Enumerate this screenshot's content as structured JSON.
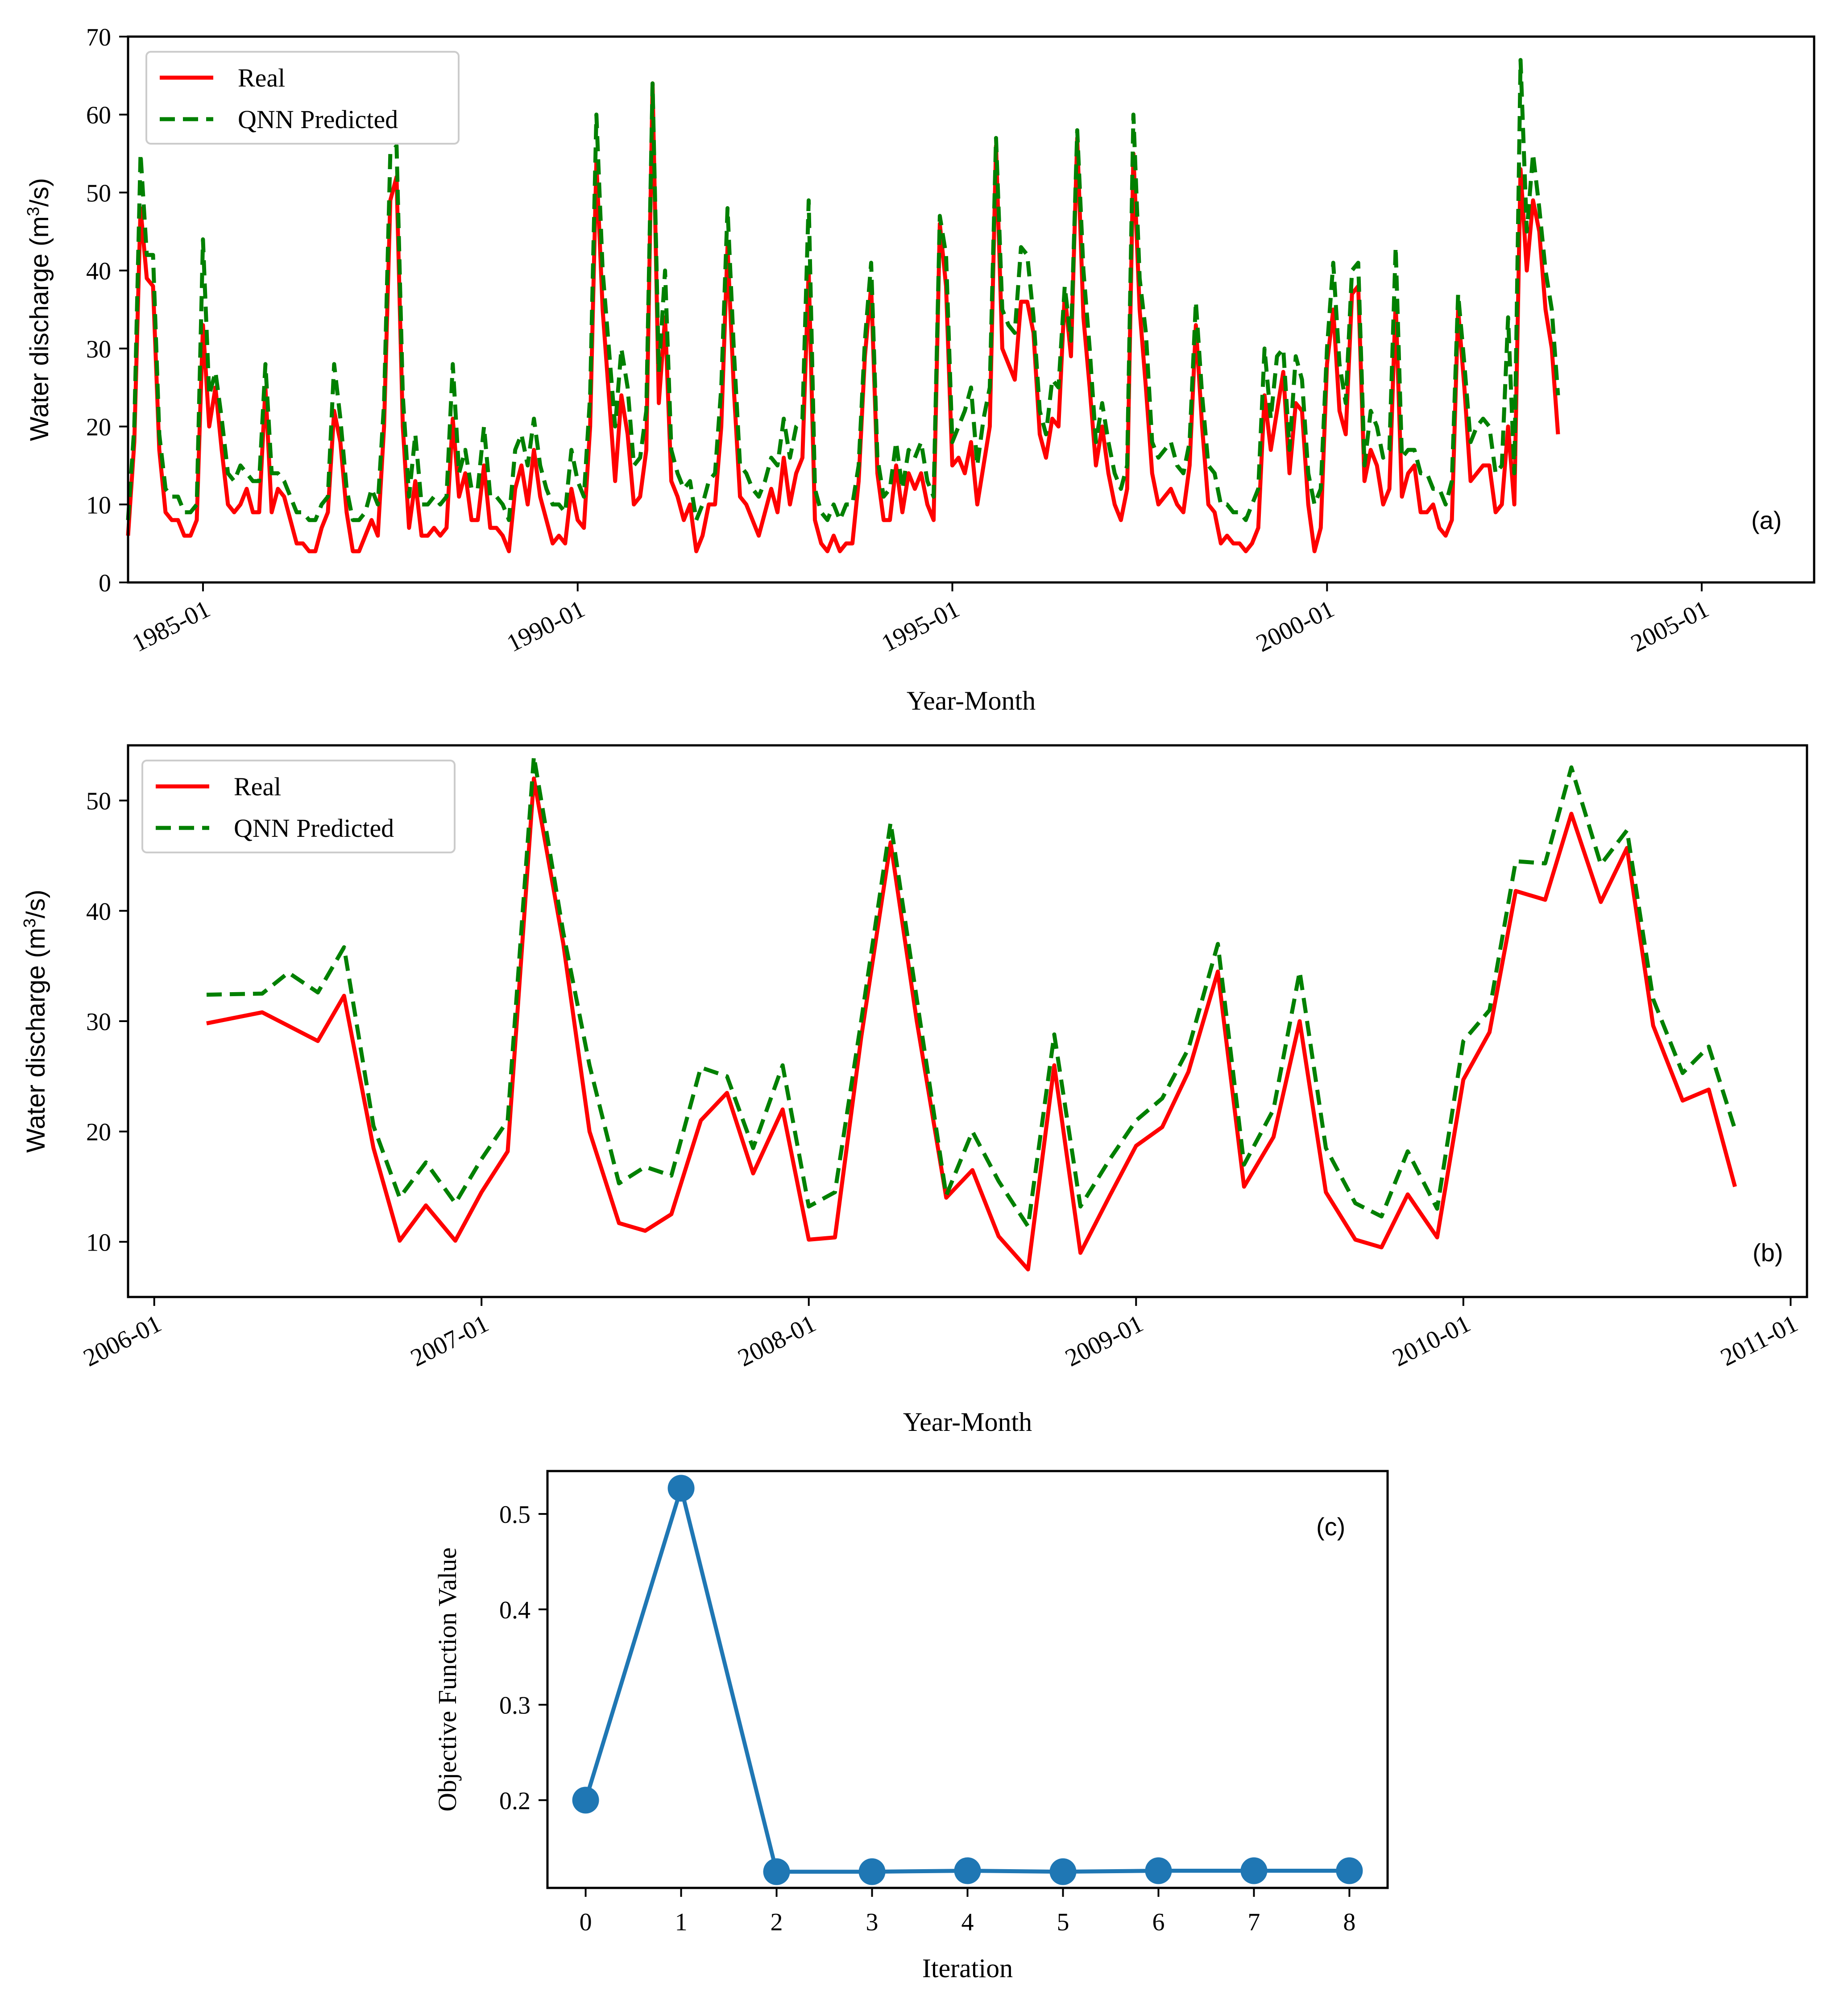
{
  "colors": {
    "real": "#ff0000",
    "predicted": "#008000",
    "objective": "#1f77b4",
    "axis": "#000000",
    "background": "#ffffff"
  },
  "chart_data": [
    {
      "id": "a",
      "type": "line",
      "panel_label": "(a)",
      "title": "",
      "xlabel": "Year-Month",
      "ylabel_main": "Water discharge (m",
      "ylabel_sup": "3",
      "ylabel_tail": "/s)",
      "xlim": [
        1984.0,
        2006.5
      ],
      "ylim": [
        0,
        70
      ],
      "yticks": [
        0,
        10,
        20,
        30,
        40,
        50,
        60,
        70
      ],
      "xticks": [
        {
          "value": 1985.0,
          "label": "1985-01"
        },
        {
          "value": 1990.0,
          "label": "1990-01"
        },
        {
          "value": 1995.0,
          "label": "1995-01"
        },
        {
          "value": 2000.0,
          "label": "2000-01"
        },
        {
          "value": 2005.0,
          "label": "2005-01"
        }
      ],
      "legend": {
        "position": "top-left",
        "entries": [
          "Real",
          "QNN Predicted"
        ]
      },
      "x_start": 1984.0,
      "x_step": 0.08333,
      "series": [
        {
          "name": "Real",
          "style": "solid",
          "values": [
            6,
            18,
            48,
            39,
            38,
            17,
            9,
            8,
            8,
            6,
            6,
            8,
            33,
            20,
            25,
            17,
            10,
            9,
            10,
            12,
            9,
            9,
            25,
            9,
            12,
            11,
            8,
            5,
            5,
            4,
            4,
            7,
            9,
            22,
            18,
            9,
            4,
            4,
            6,
            8,
            6,
            20,
            49,
            52,
            20,
            7,
            13,
            6,
            6,
            7,
            6,
            7,
            21,
            11,
            14,
            8,
            8,
            15,
            7,
            7,
            6,
            4,
            12,
            15,
            10,
            17,
            11,
            8,
            5,
            6,
            5,
            12,
            8,
            7,
            20,
            54,
            35,
            24,
            13,
            24,
            19,
            10,
            11,
            17,
            64,
            23,
            34,
            13,
            11,
            8,
            10,
            4,
            6,
            10,
            10,
            20,
            43,
            25,
            11,
            10,
            8,
            6,
            9,
            12,
            9,
            16,
            10,
            14,
            16,
            40,
            8,
            5,
            4,
            6,
            4,
            5,
            5,
            13,
            29,
            38,
            14,
            8,
            8,
            15,
            9,
            14,
            12,
            14,
            10,
            8,
            46,
            38,
            15,
            16,
            14,
            18,
            10,
            15,
            20,
            56,
            30,
            28,
            26,
            36,
            36,
            32,
            19,
            16,
            21,
            20,
            37,
            29,
            57,
            34,
            25,
            15,
            20,
            14,
            10,
            8,
            12,
            55,
            35,
            25,
            14,
            10,
            11,
            12,
            10,
            9,
            15,
            33,
            20,
            10,
            9,
            5,
            6,
            5,
            5,
            4,
            5,
            7,
            24,
            17,
            22,
            27,
            14,
            23,
            22,
            10,
            4,
            7,
            28,
            35,
            22,
            19,
            37,
            38,
            13,
            17,
            15,
            10,
            12,
            36,
            11,
            14,
            15,
            9,
            9,
            10,
            7,
            6,
            8,
            35,
            25,
            13,
            14,
            15,
            15,
            9,
            10,
            20,
            10,
            53,
            40,
            49,
            45,
            35,
            30,
            19
          ]
        },
        {
          "name": "QNN Predicted",
          "style": "dashed",
          "values": [
            8,
            20,
            55,
            42,
            42,
            19,
            12,
            11,
            11,
            9,
            9,
            10,
            44,
            24,
            27,
            21,
            14,
            13,
            15,
            14,
            13,
            13,
            28,
            14,
            14,
            13,
            11,
            9,
            9,
            8,
            8,
            10,
            11,
            28,
            21,
            12,
            8,
            8,
            9,
            12,
            10,
            23,
            55,
            56,
            24,
            11,
            19,
            10,
            10,
            11,
            10,
            11,
            28,
            14,
            17,
            12,
            12,
            20,
            11,
            11,
            10,
            8,
            17,
            19,
            15,
            21,
            15,
            12,
            10,
            10,
            9,
            17,
            13,
            11,
            24,
            60,
            40,
            30,
            20,
            30,
            25,
            15,
            16,
            22,
            64,
            27,
            40,
            17,
            14,
            12,
            13,
            8,
            10,
            13,
            14,
            25,
            48,
            30,
            15,
            14,
            12,
            11,
            13,
            16,
            15,
            21,
            16,
            20,
            21,
            49,
            12,
            9,
            8,
            10,
            8,
            10,
            10,
            15,
            31,
            41,
            16,
            11,
            12,
            18,
            12,
            17,
            16,
            18,
            13,
            11,
            47,
            42,
            18,
            20,
            22,
            25,
            15,
            21,
            25,
            57,
            35,
            33,
            32,
            43,
            42,
            34,
            22,
            19,
            26,
            25,
            38,
            31,
            58,
            40,
            30,
            18,
            23,
            18,
            14,
            12,
            15,
            60,
            39,
            32,
            18,
            16,
            17,
            18,
            15,
            14,
            18,
            36,
            24,
            15,
            14,
            10,
            10,
            9,
            9,
            8,
            10,
            12,
            30,
            21,
            29,
            30,
            17,
            29,
            26,
            14,
            10,
            12,
            30,
            41,
            28,
            23,
            40,
            41,
            15,
            22,
            20,
            16,
            17,
            43,
            16,
            17,
            17,
            14,
            14,
            12,
            12,
            10,
            13,
            37,
            28,
            18,
            20,
            21,
            20,
            14,
            15,
            34,
            14,
            67,
            45,
            55,
            48,
            40,
            35,
            24
          ]
        }
      ]
    },
    {
      "id": "b",
      "type": "line",
      "panel_label": "(b)",
      "title": "",
      "xlabel": "Year-Month",
      "ylabel_main": "Water discharge (m",
      "ylabel_sup": "3",
      "ylabel_tail": "/s)",
      "xlim": [
        2005.92,
        2011.05
      ],
      "ylim": [
        5,
        55
      ],
      "yticks": [
        10,
        20,
        30,
        40,
        50
      ],
      "xticks": [
        {
          "value": 2006.0,
          "label": "2006-01"
        },
        {
          "value": 2007.0,
          "label": "2007-01"
        },
        {
          "value": 2008.0,
          "label": "2008-01"
        },
        {
          "value": 2009.0,
          "label": "2009-01"
        },
        {
          "value": 2010.0,
          "label": "2010-01"
        },
        {
          "value": 2011.0,
          "label": "2011-01"
        }
      ],
      "legend": {
        "position": "top-left",
        "entries": [
          "Real",
          "QNN Predicted"
        ]
      },
      "series": [
        {
          "name": "Real",
          "style": "solid",
          "x": [
            2006.16,
            2006.33,
            2006.5,
            2006.58,
            2006.67,
            2006.75,
            2006.83,
            2006.92,
            2007.0,
            2007.08,
            2007.16,
            2007.25,
            2007.33,
            2007.42,
            2007.5,
            2007.58,
            2007.67,
            2007.75,
            2007.83,
            2007.92,
            2008.0,
            2008.08,
            2008.16,
            2008.25,
            2008.33,
            2008.42,
            2008.5,
            2008.58,
            2008.67,
            2008.75,
            2008.83,
            2008.92,
            2009.0,
            2009.08,
            2009.16,
            2009.25,
            2009.33,
            2009.42,
            2009.5,
            2009.58,
            2009.67,
            2009.75,
            2009.83,
            2009.92,
            2010.0,
            2010.08,
            2010.16,
            2010.25,
            2010.33,
            2010.42,
            2010.5,
            2010.58,
            2010.67,
            2010.75,
            2010.83
          ],
          "values": [
            29.8,
            30.8,
            28.2,
            32.3,
            18.5,
            10.1,
            13.3,
            10.1,
            14.5,
            18.2,
            52,
            37,
            20,
            11.7,
            11,
            12.5,
            21,
            23.5,
            16.2,
            22,
            10.2,
            10.4,
            28.5,
            46.2,
            30,
            14,
            16.5,
            10.5,
            7.5,
            26,
            9,
            14.2,
            18.7,
            20.4,
            25.4,
            34.5,
            15,
            19.5,
            30,
            14.5,
            10.2,
            9.5,
            14.3,
            10.4,
            24.7,
            29,
            41.8,
            41,
            48.8,
            40.8,
            45.7,
            29.6,
            22.8,
            23.8,
            15
          ]
        },
        {
          "name": "QNN Predicted",
          "style": "dashed",
          "x": [
            2006.16,
            2006.33,
            2006.41,
            2006.5,
            2006.58,
            2006.67,
            2006.75,
            2006.83,
            2006.92,
            2007.0,
            2007.08,
            2007.16,
            2007.25,
            2007.33,
            2007.42,
            2007.5,
            2007.58,
            2007.67,
            2007.75,
            2007.83,
            2007.92,
            2008.0,
            2008.08,
            2008.16,
            2008.25,
            2008.33,
            2008.42,
            2008.5,
            2008.58,
            2008.67,
            2008.75,
            2008.83,
            2008.92,
            2009.0,
            2009.08,
            2009.16,
            2009.25,
            2009.33,
            2009.42,
            2009.5,
            2009.58,
            2009.67,
            2009.75,
            2009.83,
            2009.92,
            2010.0,
            2010.08,
            2010.16,
            2010.25,
            2010.33,
            2010.42,
            2010.5,
            2010.58,
            2010.67,
            2010.75,
            2010.83
          ],
          "values": [
            32.4,
            32.5,
            34.4,
            32.6,
            36.7,
            20.5,
            14,
            17.2,
            13.5,
            17.5,
            21,
            54,
            38,
            26,
            15.3,
            16.8,
            16,
            25.8,
            25,
            18.5,
            26,
            13.2,
            14.5,
            30,
            48,
            32,
            14.2,
            20,
            15.5,
            11.4,
            28.8,
            13.2,
            17.5,
            21,
            23,
            27.5,
            37,
            17,
            22,
            34.5,
            18.5,
            13.5,
            12.3,
            18.2,
            13,
            28.2,
            31,
            44.5,
            44.3,
            53,
            44.2,
            47.3,
            32,
            25.3,
            27.7,
            20.2
          ]
        }
      ]
    },
    {
      "id": "c",
      "type": "line",
      "panel_label": "(c)",
      "title": "",
      "xlabel": "Iteration",
      "ylabel": "Objective Function Value",
      "xlim": [
        -0.4,
        8.4
      ],
      "ylim": [
        0.108,
        0.545
      ],
      "xticks": [
        0,
        1,
        2,
        3,
        4,
        5,
        6,
        7,
        8
      ],
      "yticks": [
        0.2,
        0.3,
        0.4,
        0.5
      ],
      "ytick_labels": [
        "0.2",
        "0.3",
        "0.4",
        "0.5"
      ],
      "series": [
        {
          "name": "Objective Function Value",
          "style": "solid-markers",
          "x": [
            0,
            1,
            2,
            3,
            4,
            5,
            6,
            7,
            8
          ],
          "values": [
            0.2,
            0.527,
            0.125,
            0.125,
            0.126,
            0.125,
            0.126,
            0.126,
            0.126
          ]
        }
      ]
    }
  ]
}
